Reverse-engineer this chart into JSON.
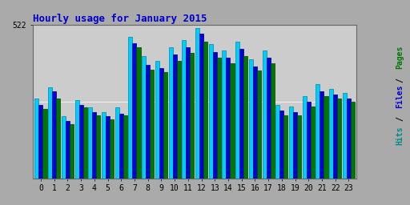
{
  "title": "Hourly usage for January 2015",
  "hours": [
    0,
    1,
    2,
    3,
    4,
    5,
    6,
    7,
    8,
    9,
    10,
    11,
    12,
    13,
    14,
    15,
    16,
    17,
    18,
    19,
    20,
    21,
    22,
    23
  ],
  "hits": [
    270,
    310,
    210,
    265,
    240,
    225,
    240,
    480,
    415,
    400,
    445,
    470,
    510,
    455,
    435,
    465,
    405,
    435,
    250,
    245,
    280,
    320,
    305,
    290
  ],
  "files": [
    250,
    295,
    195,
    250,
    225,
    210,
    220,
    460,
    385,
    375,
    420,
    445,
    490,
    430,
    410,
    440,
    380,
    410,
    230,
    225,
    260,
    295,
    285,
    270
  ],
  "pages": [
    235,
    270,
    185,
    240,
    215,
    200,
    215,
    445,
    370,
    360,
    400,
    425,
    465,
    410,
    390,
    415,
    365,
    390,
    215,
    215,
    245,
    280,
    270,
    260
  ],
  "ylim": [
    0,
    522
  ],
  "bar_color_hits": "#00ccff",
  "bar_color_files": "#0000dd",
  "bar_color_pages": "#007700",
  "edge_color_hits": "#008899",
  "edge_color_files": "#000066",
  "edge_color_pages": "#004400",
  "bg_color": "#cccccc",
  "outer_color": "#aaaaaa",
  "title_color": "#0000cc",
  "ylabel_pages_color": "#007700",
  "ylabel_files_color": "#0000cc",
  "ylabel_hits_color": "#008888"
}
